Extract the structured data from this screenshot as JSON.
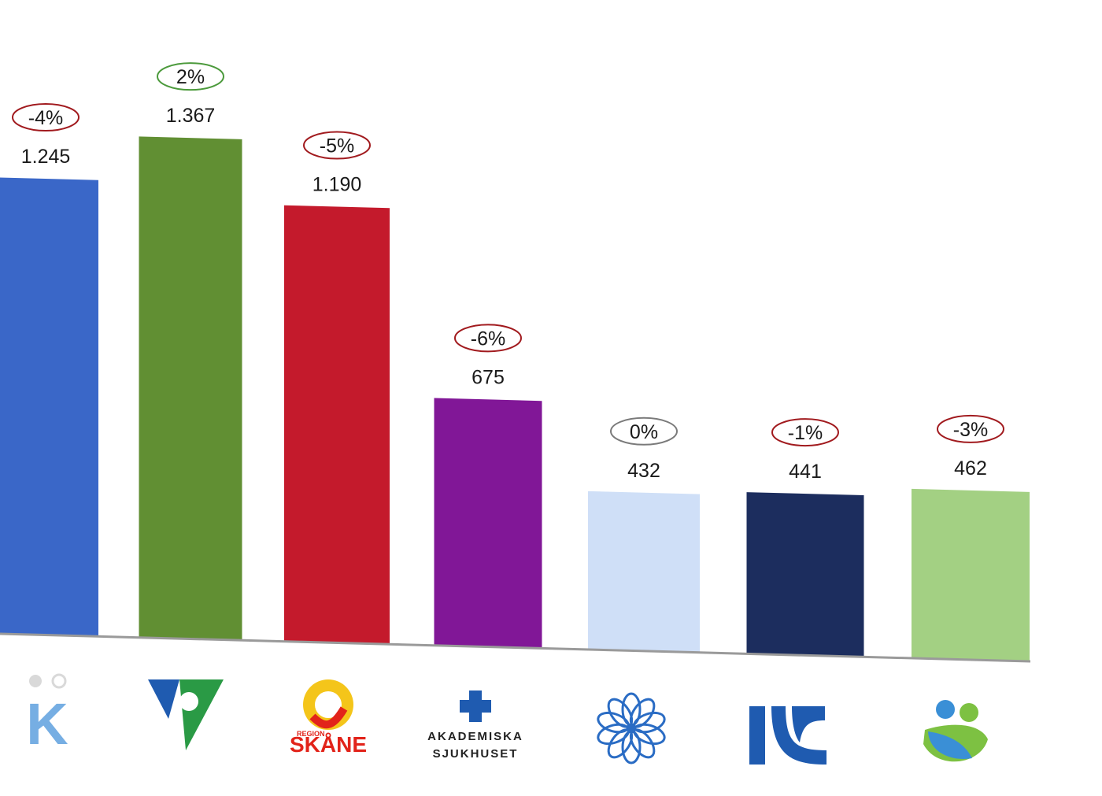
{
  "chart_data": {
    "type": "bar",
    "categories": [
      "K",
      "Västra Götaland",
      "Region Skåne",
      "Akademiska sjukhuset",
      "Blue flower",
      "Blue stripes",
      "Green figures"
    ],
    "values": [
      1245,
      1367,
      1190,
      675,
      432,
      441,
      462
    ],
    "value_labels": [
      "1.245",
      "1.367",
      "1.190",
      "675",
      "432",
      "441",
      "462"
    ],
    "change_labels": [
      "-4%",
      "2%",
      "-5%",
      "-6%",
      "0%",
      "-1%",
      "-3%"
    ],
    "change_status": [
      "negative",
      "positive",
      "negative",
      "negative",
      "neutral",
      "negative",
      "negative"
    ],
    "bar_colors": [
      "#3a67c8",
      "#618f33",
      "#c41a2c",
      "#811797",
      "#cfdff7",
      "#1c2d5e",
      "#a3d083"
    ],
    "status_colors": {
      "negative": "#a11a1e",
      "positive": "#4c9a3c",
      "neutral": "#7a7a7a"
    },
    "ylim": [
      0,
      1400
    ],
    "grid": false,
    "legend": "none"
  },
  "logos": {
    "k_letter": "K",
    "skane_small": "REGION",
    "skane_big": "SKÅNE",
    "akademiska_line1": "AKADEMISKA",
    "akademiska_line2": "SJUKHUSET"
  }
}
